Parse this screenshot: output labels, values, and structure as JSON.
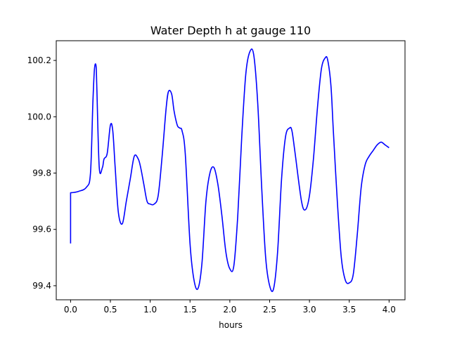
{
  "chart_data": {
    "type": "line",
    "title": "Water Depth h at gauge 110",
    "xlabel": "hours",
    "ylabel": "",
    "xlim": [
      -0.18,
      4.2
    ],
    "ylim": [
      99.35,
      100.27
    ],
    "xticks": [
      0.0,
      0.5,
      1.0,
      1.5,
      2.0,
      2.5,
      3.0,
      3.5,
      4.0
    ],
    "xtick_labels": [
      "0.0",
      "0.5",
      "1.0",
      "1.5",
      "2.0",
      "2.5",
      "3.0",
      "3.5",
      "4.0"
    ],
    "yticks": [
      99.4,
      99.6,
      99.8,
      100.0,
      100.2
    ],
    "ytick_labels": [
      "99.4",
      "99.6",
      "99.8",
      "100.0",
      "100.2"
    ],
    "grid": false,
    "series": [
      {
        "color": "#0000ff",
        "x": [
          0.0,
          0.0,
          0.1,
          0.2,
          0.25,
          0.28,
          0.3,
          0.32,
          0.33,
          0.36,
          0.4,
          0.42,
          0.46,
          0.5,
          0.53,
          0.56,
          0.6,
          0.65,
          0.7,
          0.75,
          0.8,
          0.85,
          0.88,
          0.92,
          0.96,
          1.0,
          1.05,
          1.1,
          1.15,
          1.2,
          1.23,
          1.27,
          1.3,
          1.34,
          1.37,
          1.4,
          1.44,
          1.5,
          1.55,
          1.6,
          1.65,
          1.7,
          1.75,
          1.8,
          1.85,
          1.9,
          1.95,
          2.0,
          2.05,
          2.1,
          2.15,
          2.2,
          2.25,
          2.3,
          2.35,
          2.4,
          2.45,
          2.5,
          2.55,
          2.6,
          2.65,
          2.7,
          2.75,
          2.78,
          2.82,
          2.9,
          2.95,
          3.0,
          3.05,
          3.1,
          3.15,
          3.2,
          3.23,
          3.27,
          3.3,
          3.35,
          3.4,
          3.45,
          3.5,
          3.55,
          3.6,
          3.65,
          3.7,
          3.75,
          3.8,
          3.85,
          3.9,
          3.95,
          4.0
        ],
        "y": [
          99.55,
          99.73,
          99.735,
          99.75,
          99.8,
          100.05,
          100.17,
          100.18,
          100.1,
          99.82,
          99.82,
          99.85,
          99.87,
          99.97,
          99.95,
          99.82,
          99.66,
          99.62,
          99.7,
          99.78,
          99.86,
          99.85,
          99.82,
          99.76,
          99.7,
          99.69,
          99.69,
          99.72,
          99.86,
          100.03,
          100.09,
          100.08,
          100.02,
          99.97,
          99.96,
          99.95,
          99.87,
          99.55,
          99.42,
          99.39,
          99.48,
          99.7,
          99.8,
          99.82,
          99.76,
          99.65,
          99.52,
          99.46,
          99.47,
          99.65,
          99.93,
          100.15,
          100.23,
          100.22,
          100.05,
          99.75,
          99.5,
          99.4,
          99.39,
          99.52,
          99.78,
          99.93,
          99.96,
          99.95,
          99.87,
          99.7,
          99.67,
          99.72,
          99.85,
          100.03,
          100.17,
          100.21,
          100.2,
          100.11,
          99.95,
          99.7,
          99.5,
          99.42,
          99.41,
          99.44,
          99.58,
          99.75,
          99.83,
          99.86,
          99.88,
          99.9,
          99.91,
          99.9,
          99.89
        ]
      }
    ]
  }
}
